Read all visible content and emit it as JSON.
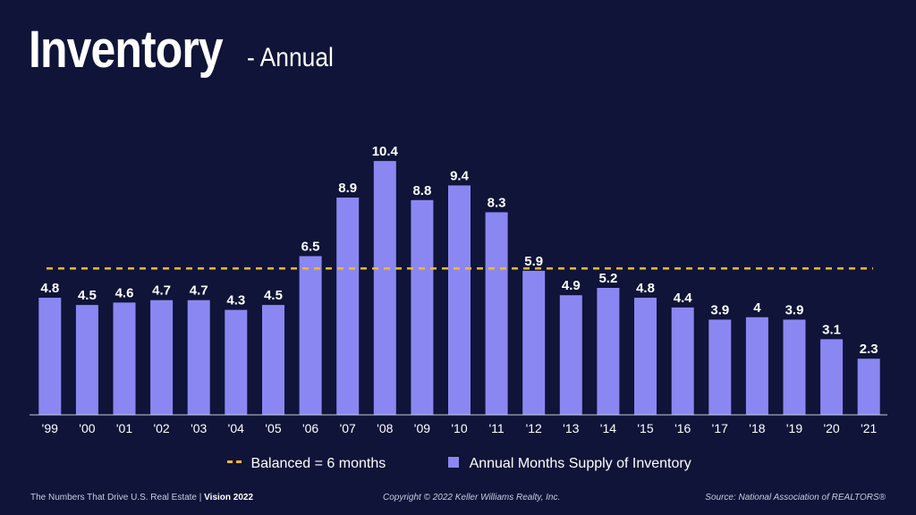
{
  "header": {
    "title": "Inventory",
    "subtitle": "- Annual"
  },
  "legend": {
    "balanced_label": "Balanced = 6 months",
    "series_label": "Annual Months Supply of Inventory"
  },
  "footer": {
    "left_text": "The Numbers That Drive U.S. Real Estate",
    "separator": "|",
    "left_bold": "Vision 2022",
    "copyright": "Copyright © 2022 Keller Williams Realty, Inc.",
    "source": "Source: National Association of REALTORS®"
  },
  "colors": {
    "background": "#0f1438",
    "bar": "#8b87f2",
    "reference_line": "#f5b731",
    "text": "#ffffff"
  },
  "chart_data": {
    "type": "bar",
    "title": "Inventory - Annual",
    "xlabel": "",
    "ylabel": "",
    "ylim": [
      0,
      11
    ],
    "categories": [
      "'99",
      "'00",
      "'01",
      "'02",
      "'03",
      "'04",
      "'05",
      "'06",
      "'07",
      "'08",
      "'09",
      "'10",
      "'11",
      "'12",
      "'13",
      "'14",
      "'15",
      "'16",
      "'17",
      "'18",
      "'19",
      "'20",
      "'21"
    ],
    "series": [
      {
        "name": "Annual Months Supply of Inventory",
        "values": [
          4.8,
          4.5,
          4.6,
          4.7,
          4.7,
          4.3,
          4.5,
          6.5,
          8.9,
          10.4,
          8.8,
          9.4,
          8.3,
          5.9,
          4.9,
          5.2,
          4.8,
          4.4,
          3.9,
          4,
          3.9,
          3.1,
          2.3
        ]
      }
    ],
    "reference_line": {
      "name": "Balanced = 6 months",
      "value": 6
    },
    "data_labels": [
      "4.8",
      "4.5",
      "4.6",
      "4.7",
      "4.7",
      "4.3",
      "4.5",
      "6.5",
      "8.9",
      "10.4",
      "8.8",
      "9.4",
      "8.3",
      "5.9",
      "4.9",
      "5.2",
      "4.8",
      "4.4",
      "3.9",
      "4",
      "3.9",
      "3.1",
      "2.3"
    ],
    "grid": false,
    "legend_position": "bottom"
  }
}
